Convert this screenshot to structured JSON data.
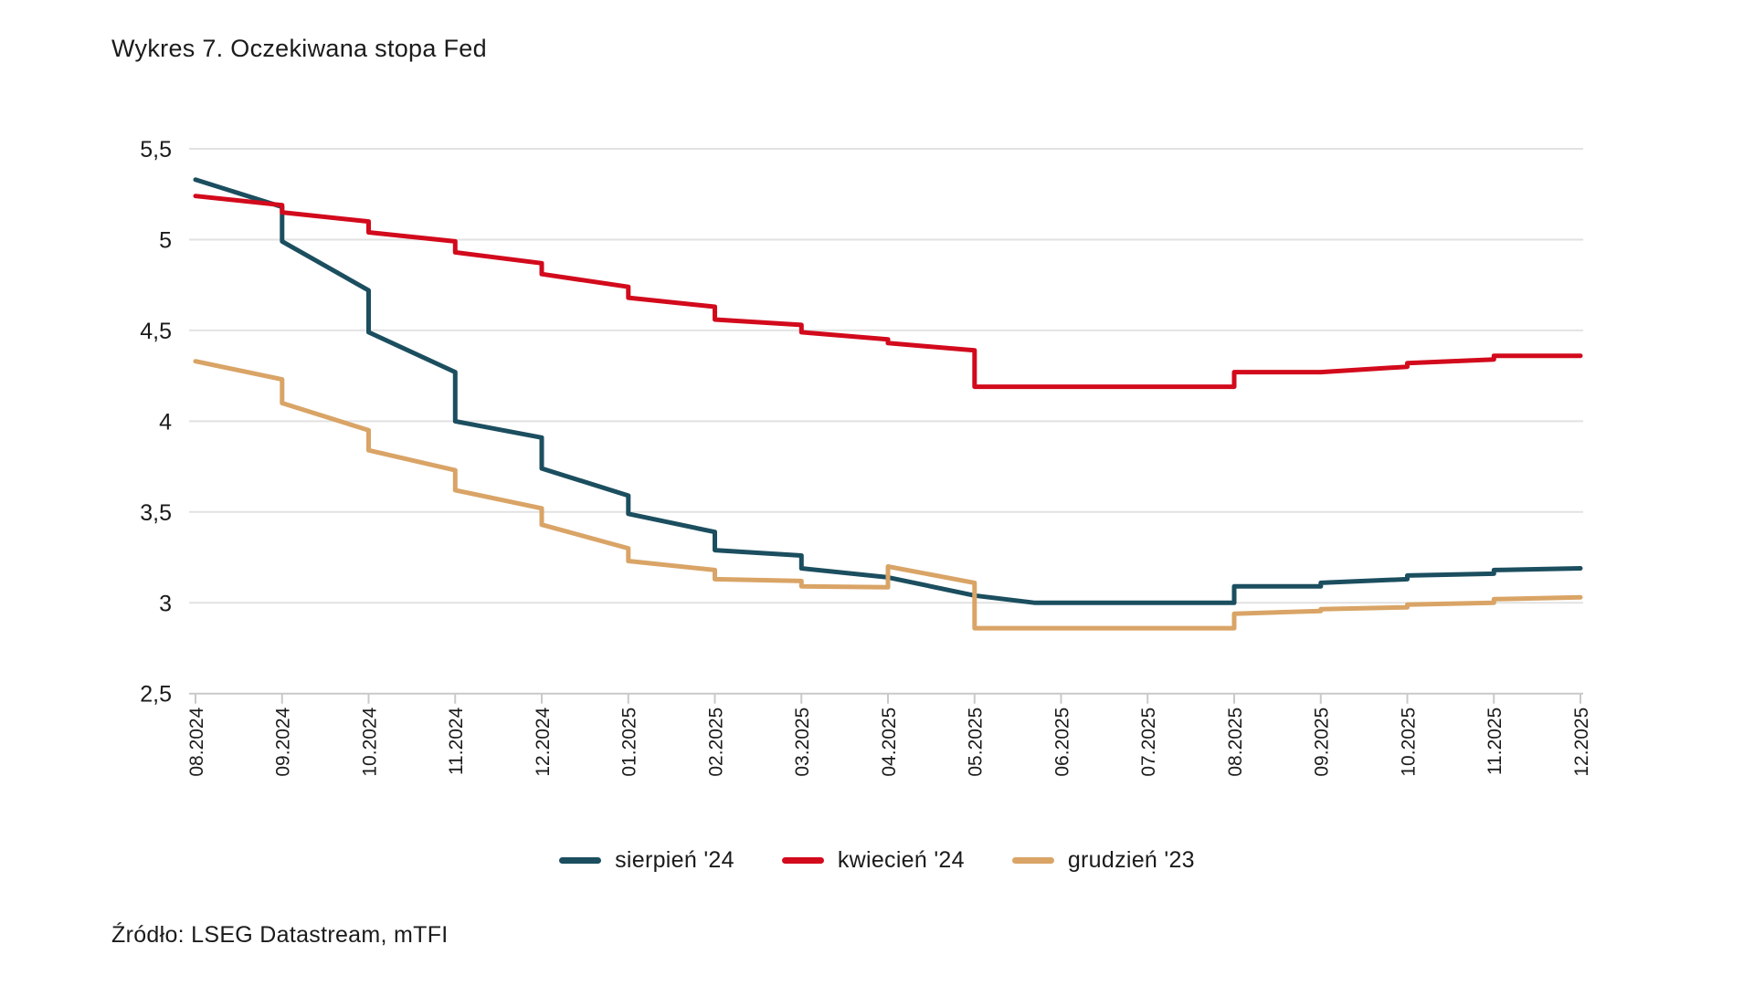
{
  "title": "Wykres 7. Oczekiwana stopa Fed",
  "source": "Źródło: LSEG Datastream, mTFI",
  "colors": {
    "series_august24": "#1b4e5f",
    "series_april24": "#d20a1c",
    "series_december23": "#d9a466",
    "gridline": "#e2e2e2",
    "axis": "#c9c9c9",
    "text": "#1b1b1b",
    "background": "#ffffff"
  },
  "chart_data": {
    "type": "line",
    "title": "Wykres 7. Oczekiwana stopa Fed",
    "xlabel": "",
    "ylabel": "",
    "ylim": [
      2.5,
      5.5
    ],
    "grid": "horizontal",
    "legend_position": "bottom",
    "x_tick_labels": [
      "08.2024",
      "09.2024",
      "10.2024",
      "11.2024",
      "12.2024",
      "01.2025",
      "02.2025",
      "03.2025",
      "04.2025",
      "05.2025",
      "06.2025",
      "07.2025",
      "08.2025",
      "09.2025",
      "10.2025",
      "11.2025",
      "12.2025"
    ],
    "y_ticks": [
      5.5,
      5,
      4.5,
      4,
      3.5,
      3,
      2.5
    ],
    "y_tick_labels": [
      "5,5",
      "5",
      "4,5",
      "4",
      "3,5",
      "3",
      "2,5"
    ],
    "series": [
      {
        "name": "sierpień '24",
        "color": "#1b4e5f",
        "points": [
          [
            0,
            5.33
          ],
          [
            1,
            5.18
          ],
          [
            1,
            4.99
          ],
          [
            2,
            4.72
          ],
          [
            2,
            4.49
          ],
          [
            3,
            4.27
          ],
          [
            3,
            4.0
          ],
          [
            4,
            3.91
          ],
          [
            4,
            3.74
          ],
          [
            5,
            3.59
          ],
          [
            5,
            3.49
          ],
          [
            6,
            3.39
          ],
          [
            6,
            3.29
          ],
          [
            7,
            3.26
          ],
          [
            7,
            3.19
          ],
          [
            8,
            3.14
          ],
          [
            9,
            3.04
          ],
          [
            9.7,
            3.0
          ],
          [
            12,
            3.0
          ],
          [
            12,
            3.09
          ],
          [
            13,
            3.09
          ],
          [
            13,
            3.11
          ],
          [
            14,
            3.13
          ],
          [
            14,
            3.15
          ],
          [
            15,
            3.16
          ],
          [
            15,
            3.18
          ],
          [
            16,
            3.19
          ]
        ]
      },
      {
        "name": "kwiecień '24",
        "color": "#d20a1c",
        "points": [
          [
            0,
            5.24
          ],
          [
            1,
            5.19
          ],
          [
            1,
            5.15
          ],
          [
            2,
            5.1
          ],
          [
            2,
            5.04
          ],
          [
            3,
            4.99
          ],
          [
            3,
            4.93
          ],
          [
            4,
            4.87
          ],
          [
            4,
            4.81
          ],
          [
            5,
            4.74
          ],
          [
            5,
            4.68
          ],
          [
            6,
            4.63
          ],
          [
            6,
            4.56
          ],
          [
            7,
            4.53
          ],
          [
            7,
            4.49
          ],
          [
            8,
            4.45
          ],
          [
            8,
            4.43
          ],
          [
            9,
            4.39
          ],
          [
            9,
            4.19
          ],
          [
            12,
            4.19
          ],
          [
            12,
            4.27
          ],
          [
            13,
            4.27
          ],
          [
            14,
            4.3
          ],
          [
            14,
            4.32
          ],
          [
            15,
            4.34
          ],
          [
            15,
            4.36
          ],
          [
            16,
            4.36
          ]
        ]
      },
      {
        "name": "grudzień '23",
        "color": "#d9a466",
        "points": [
          [
            0,
            4.33
          ],
          [
            1,
            4.23
          ],
          [
            1,
            4.1
          ],
          [
            2,
            3.95
          ],
          [
            2,
            3.84
          ],
          [
            3,
            3.73
          ],
          [
            3,
            3.62
          ],
          [
            4,
            3.52
          ],
          [
            4,
            3.43
          ],
          [
            5,
            3.3
          ],
          [
            5,
            3.23
          ],
          [
            6,
            3.18
          ],
          [
            6,
            3.13
          ],
          [
            7,
            3.12
          ],
          [
            7,
            3.09
          ],
          [
            8,
            3.085
          ],
          [
            8,
            3.2
          ],
          [
            9,
            3.11
          ],
          [
            9,
            2.86
          ],
          [
            12,
            2.86
          ],
          [
            12,
            2.94
          ],
          [
            13,
            2.955
          ],
          [
            13,
            2.965
          ],
          [
            14,
            2.975
          ],
          [
            14,
            2.99
          ],
          [
            15,
            3.0
          ],
          [
            15,
            3.02
          ],
          [
            16,
            3.03
          ]
        ]
      }
    ]
  }
}
